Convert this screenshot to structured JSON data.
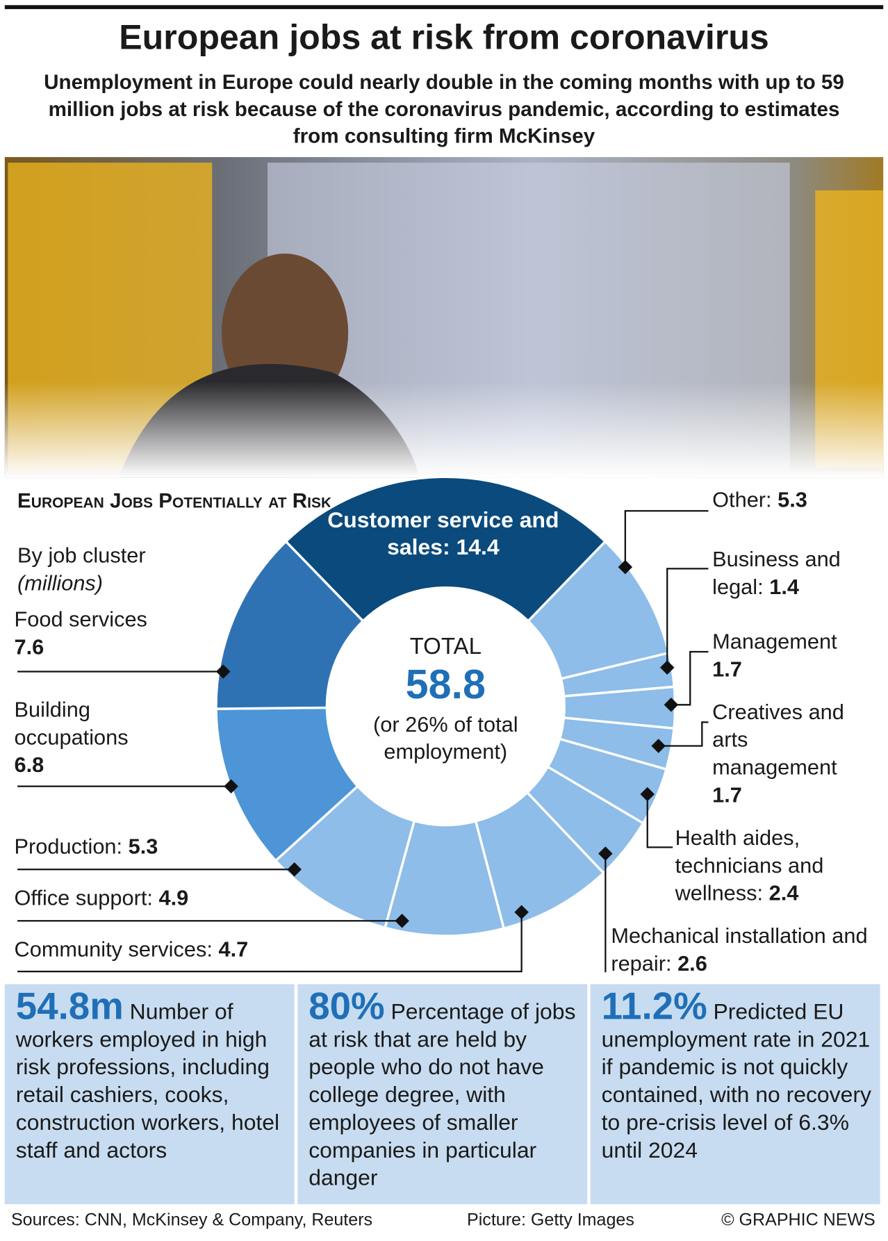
{
  "title": "European jobs at risk from coronavirus",
  "subtitle": "Unemployment in Europe could nearly double in the coming months with up to 59 million jobs at risk because of the coronavirus pandemic, according to estimates from consulting firm McKinsey",
  "chart_data": {
    "type": "donut",
    "title": "European Jobs Potentially at Risk",
    "subtitle": "By job cluster",
    "unit": "(millions)",
    "categories": [
      "Customer service and sales:",
      "Other:",
      "Business and legal:",
      "Management",
      "Creatives and arts management",
      "Health aides, technicians and wellness:",
      "Mechanical installation and repair:",
      "Community services:",
      "Office support:",
      "Production:",
      "Building occupations",
      "Food services"
    ],
    "values": [
      14.4,
      5.3,
      1.4,
      1.7,
      1.7,
      2.4,
      2.6,
      4.7,
      4.9,
      5.3,
      6.8,
      7.6
    ],
    "colors": [
      "#0b4a7c",
      "#8dbde8",
      "#8dbde8",
      "#8dbde8",
      "#8dbde8",
      "#8dbde8",
      "#8dbde8",
      "#8dbde8",
      "#8dbde8",
      "#8dbde8",
      "#4d95d6",
      "#2e72b4"
    ],
    "total_label": "TOTAL",
    "total": 58.8,
    "total_note": "(or 26% of total employment)"
  },
  "stats": [
    {
      "figure": "54.8m",
      "text": "Number of workers employed in high risk professions, including retail cashiers, cooks, construction workers, hotel staff and actors"
    },
    {
      "figure": "80%",
      "text": "Percentage of jobs at risk that are held by people who do not have college degree, with employees of smaller companies in particular danger"
    },
    {
      "figure": "11.2%",
      "text": "Predicted EU unemployment rate in 2021 if pandemic is not quickly contained, with no recovery to pre-crisis level of 6.3% until 2024"
    }
  ],
  "footer": {
    "sources": "Sources: CNN, McKinsey & Company, Reuters",
    "picture": "Picture: Getty Images",
    "credit": "© GRAPHIC NEWS"
  }
}
